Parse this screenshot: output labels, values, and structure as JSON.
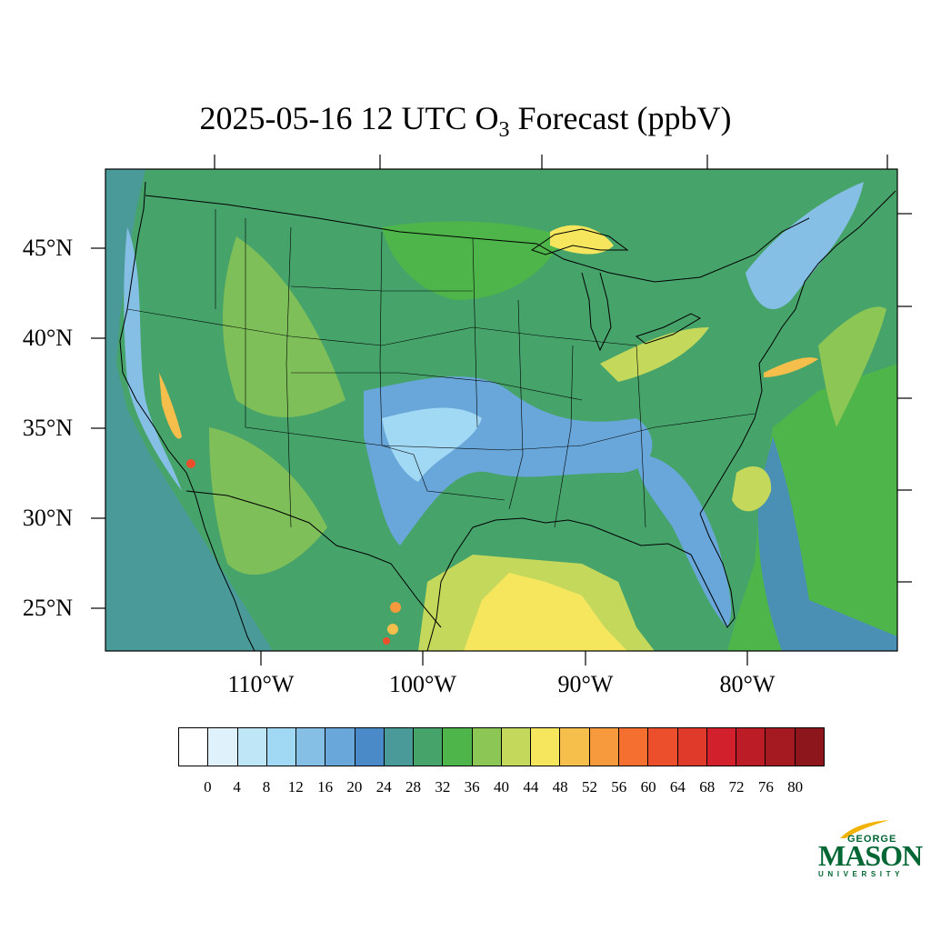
{
  "title": {
    "prefix": "2025-05-16 12 UTC O",
    "subscript": "3",
    "suffix": " Forecast (ppbV)"
  },
  "axes": {
    "latitude_labels": [
      "45°N",
      "40°N",
      "35°N",
      "30°N",
      "25°N"
    ],
    "longitude_labels": [
      "110°W",
      "100°W",
      "90°W",
      "80°W"
    ]
  },
  "colorbar": {
    "colors": [
      "#ffffff",
      "#dff1fb",
      "#bfe6f7",
      "#a1d8f3",
      "#86bfe6",
      "#69a7da",
      "#4a8ac8",
      "#4a9a9a",
      "#46a36a",
      "#4db54a",
      "#8cc655",
      "#c4d85c",
      "#f5e65e",
      "#f6be4a",
      "#f79a3e",
      "#f56f30",
      "#eb4f2c",
      "#df3a2a",
      "#d2202c",
      "#bb1c25",
      "#a51a20",
      "#8c161b"
    ],
    "labels": [
      "0",
      "4",
      "8",
      "12",
      "16",
      "20",
      "24",
      "28",
      "32",
      "36",
      "40",
      "44",
      "48",
      "52",
      "56",
      "60",
      "64",
      "68",
      "72",
      "76",
      "80"
    ]
  },
  "logo": {
    "line1": "GEORGE",
    "line2": "MASON",
    "line3": "UNIVERSITY",
    "color": "#006633",
    "accent": "#f2b300"
  }
}
